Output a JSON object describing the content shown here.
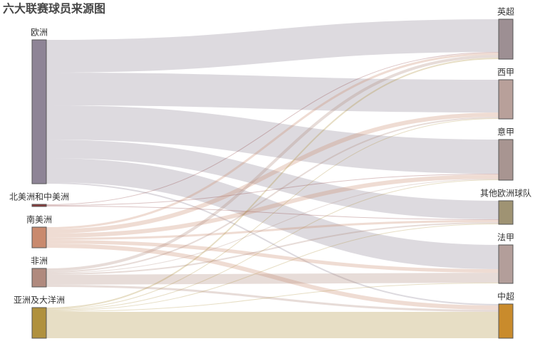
{
  "chart_data": {
    "type": "sankey",
    "title": "六大联赛球员来源图",
    "sources": [
      {
        "name": "欧洲",
        "color": "#8e8496",
        "values": [
          46,
          46,
          48,
          26,
          34,
          2
        ]
      },
      {
        "name": "北美洲和中美洲",
        "color": "#8b3a3a",
        "values": [
          1,
          0,
          1,
          1,
          0,
          0
        ]
      },
      {
        "name": "南美洲",
        "color": "#c98a6e",
        "values": [
          3,
          6,
          6,
          3,
          5,
          6
        ]
      },
      {
        "name": "非洲",
        "color": "#b08a7e",
        "values": [
          4,
          2,
          1,
          2,
          14,
          3
        ]
      },
      {
        "name": "亚洲及大洋洲",
        "color": "#b0913e",
        "values": [
          2,
          1,
          1,
          1,
          1,
          37
        ]
      }
    ],
    "targets": [
      {
        "name": "英超",
        "color": "#9d8f93"
      },
      {
        "name": "西甲",
        "color": "#b8a09a"
      },
      {
        "name": "意甲",
        "color": "#a89591"
      },
      {
        "name": "其他欧洲球队",
        "color": "#9f9373"
      },
      {
        "name": "法甲",
        "color": "#b39e9a"
      },
      {
        "name": "中超",
        "color": "#c98b2c"
      }
    ]
  }
}
